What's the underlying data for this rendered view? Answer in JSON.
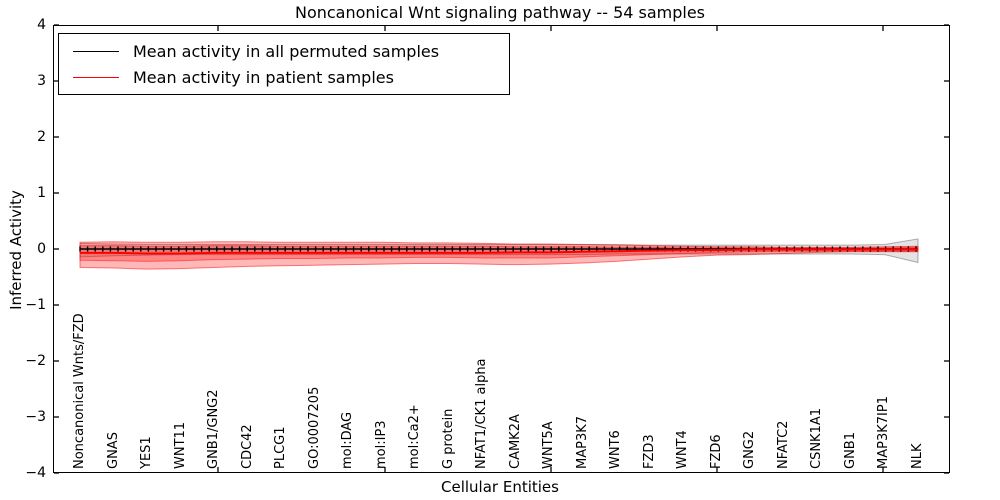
{
  "title": "Noncanonical Wnt signaling pathway -- 54 samples",
  "legend": {
    "items": [
      {
        "label": "Mean activity in all permuted samples",
        "color": "#000000"
      },
      {
        "label": "Mean activity in patient samples",
        "color": "#ff0000"
      }
    ],
    "position": "upper left"
  },
  "chart_data": {
    "type": "line",
    "title": "Noncanonical Wnt signaling pathway -- 54 samples",
    "xlabel": "Cellular Entities",
    "ylabel": "Inferred Activity",
    "ylim": [
      -4,
      4
    ],
    "yticks": [
      -4,
      -3,
      -2,
      -1,
      0,
      1,
      2,
      3,
      4
    ],
    "grid": false,
    "legend_position": "upper left",
    "categories": [
      "Noncanonical Wnts/FZD",
      "GNAS",
      "YES1",
      "WNT11",
      "GNB1/GNG2",
      "CDC42",
      "PLCG1",
      "GO:0007205",
      "mol:DAG",
      "mol:IP3",
      "mol:Ca2+",
      "G protein",
      "NFAT1/CK1 alpha",
      "CAMK2A",
      "WNT5A",
      "MAP3K7",
      "WNT6",
      "FZD3",
      "WNT4",
      "FZD6",
      "GNG2",
      "NFATC2",
      "CSNK1A1",
      "GNB1",
      "MAP3K7IP1",
      "NLK"
    ],
    "series": [
      {
        "name": "Mean activity in all permuted samples",
        "color": "#000000",
        "linewidth": 1.4,
        "marker": "|",
        "values": [
          0,
          0,
          0,
          0,
          0,
          0,
          0,
          0,
          0,
          0,
          0,
          0,
          0,
          0,
          0,
          0,
          0,
          0,
          0,
          0,
          0,
          0,
          0,
          0,
          0,
          0
        ]
      },
      {
        "name": "Mean activity in patient samples",
        "color": "#ff0000",
        "linewidth": 2,
        "marker": "none",
        "values": [
          -0.07,
          -0.07,
          -0.08,
          -0.08,
          -0.07,
          -0.07,
          -0.07,
          -0.07,
          -0.07,
          -0.07,
          -0.07,
          -0.07,
          -0.07,
          -0.06,
          -0.06,
          -0.05,
          -0.04,
          -0.03,
          -0.02,
          -0.02,
          -0.01,
          -0.01,
          -0.01,
          -0.01,
          -0.01,
          -0.01
        ]
      }
    ],
    "bands": [
      {
        "name": "permuted-samples-std",
        "fill": "rgba(0,0,0,0.11)",
        "stroke": "rgba(0,0,0,0.30)",
        "upper": [
          0.1,
          0.09,
          0.08,
          0.08,
          0.08,
          0.08,
          0.08,
          0.08,
          0.08,
          0.08,
          0.08,
          0.08,
          0.08,
          0.08,
          0.08,
          0.08,
          0.08,
          0.07,
          0.07,
          0.07,
          0.07,
          0.07,
          0.07,
          0.07,
          0.08,
          0.18
        ],
        "lower": [
          -0.14,
          -0.12,
          -0.11,
          -0.1,
          -0.1,
          -0.1,
          -0.1,
          -0.1,
          -0.1,
          -0.1,
          -0.1,
          -0.1,
          -0.1,
          -0.1,
          -0.1,
          -0.1,
          -0.09,
          -0.09,
          -0.09,
          -0.09,
          -0.09,
          -0.09,
          -0.09,
          -0.09,
          -0.1,
          -0.24
        ]
      },
      {
        "name": "patient-samples-std-outer",
        "fill": "rgba(255,0,0,0.28)",
        "stroke": "rgba(255,0,0,0.50)",
        "upper": [
          0.12,
          0.13,
          0.12,
          0.12,
          0.13,
          0.13,
          0.12,
          0.12,
          0.12,
          0.12,
          0.11,
          0.11,
          0.1,
          0.09,
          0.09,
          0.08,
          0.07,
          0.06,
          0.05,
          0.04,
          0.04,
          0.03,
          0.03,
          0.03,
          0.04,
          0.05
        ],
        "lower": [
          -0.33,
          -0.34,
          -0.36,
          -0.35,
          -0.33,
          -0.31,
          -0.3,
          -0.29,
          -0.28,
          -0.27,
          -0.26,
          -0.26,
          -0.27,
          -0.28,
          -0.27,
          -0.25,
          -0.22,
          -0.18,
          -0.14,
          -0.11,
          -0.1,
          -0.08,
          -0.06,
          -0.05,
          -0.05,
          -0.05
        ],
        "legend": "Mean activity in patient samples"
      },
      {
        "name": "patient-samples-std-inner",
        "fill": "rgba(255,0,0,0.28)",
        "stroke": "rgba(255,0,0,0.45)",
        "upper": [
          0.06,
          0.06,
          0.05,
          0.05,
          0.06,
          0.06,
          0.05,
          0.05,
          0.05,
          0.05,
          0.05,
          0.05,
          0.05,
          0.04,
          0.04,
          0.04,
          0.03,
          0.03,
          0.02,
          0.02,
          0.02,
          0.02,
          0.02,
          0.02,
          0.02,
          0.03
        ],
        "lower": [
          -0.2,
          -0.21,
          -0.22,
          -0.21,
          -0.19,
          -0.18,
          -0.17,
          -0.17,
          -0.16,
          -0.16,
          -0.15,
          -0.15,
          -0.16,
          -0.16,
          -0.16,
          -0.14,
          -0.12,
          -0.1,
          -0.08,
          -0.06,
          -0.05,
          -0.04,
          -0.04,
          -0.04,
          -0.04,
          -0.04
        ]
      }
    ]
  }
}
